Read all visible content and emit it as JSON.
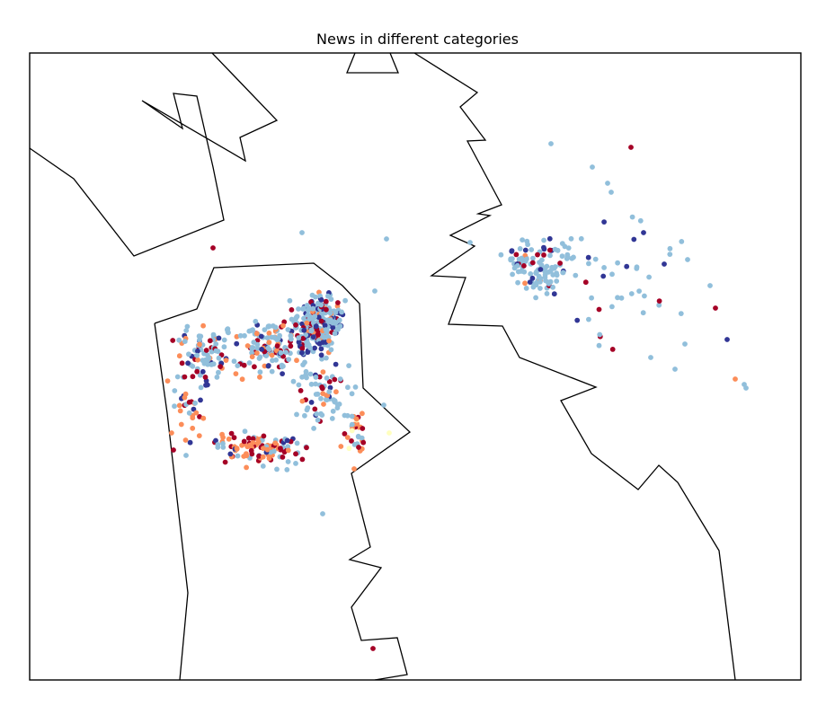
{
  "chart_data": {
    "type": "scatter",
    "title": "News in different categories",
    "xlabel": "",
    "ylabel": "",
    "grid": false,
    "legend": "none",
    "series_colors": [
      "#4575b4",
      "#91bfdb",
      "#e0f3f8",
      "#fc8d59",
      "#d73027",
      "#313695",
      "#a50026",
      "#ffffbf"
    ],
    "map": {
      "coastlines": "black outlines, no fill",
      "frame": "black border"
    }
  }
}
